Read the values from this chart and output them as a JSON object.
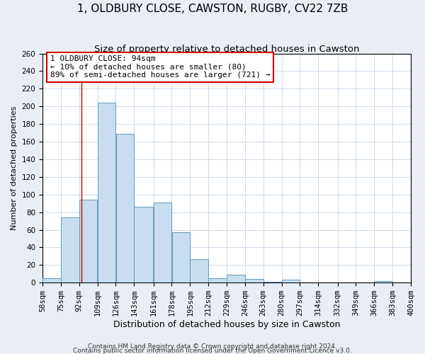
{
  "title": "1, OLDBURY CLOSE, CAWSTON, RUGBY, CV22 7ZB",
  "subtitle": "Size of property relative to detached houses in Cawston",
  "xlabel": "Distribution of detached houses by size in Cawston",
  "ylabel": "Number of detached properties",
  "bin_edges": [
    58,
    75,
    92,
    109,
    126,
    143,
    161,
    178,
    195,
    212,
    229,
    246,
    263,
    280,
    297,
    314,
    332,
    349,
    366,
    383,
    400
  ],
  "bin_labels": [
    "58sqm",
    "75sqm",
    "92sqm",
    "109sqm",
    "126sqm",
    "143sqm",
    "161sqm",
    "178sqm",
    "195sqm",
    "212sqm",
    "229sqm",
    "246sqm",
    "263sqm",
    "280sqm",
    "297sqm",
    "314sqm",
    "332sqm",
    "349sqm",
    "366sqm",
    "383sqm",
    "400sqm"
  ],
  "counts": [
    5,
    74,
    94,
    204,
    169,
    86,
    91,
    57,
    27,
    5,
    9,
    4,
    1,
    3,
    0,
    0,
    0,
    0,
    2,
    0
  ],
  "bar_color": "#c8ddef",
  "bar_edge_color": "#6699bb",
  "property_line_x": 94,
  "annotation_line1": "1 OLDBURY CLOSE: 94sqm",
  "annotation_line2": "← 10% of detached houses are smaller (80)",
  "annotation_line3": "89% of semi-detached houses are larger (721) →",
  "annotation_box_color": "#ffffff",
  "annotation_box_edge_color": "#cc0000",
  "footer_line1": "Contains HM Land Registry data © Crown copyright and database right 2024.",
  "footer_line2": "Contains public sector information licensed under the Open Government Licence v3.0.",
  "ylim": [
    0,
    260
  ],
  "yticks": [
    0,
    20,
    40,
    60,
    80,
    100,
    120,
    140,
    160,
    180,
    200,
    220,
    240,
    260
  ],
  "title_fontsize": 11,
  "subtitle_fontsize": 9.5,
  "xlabel_fontsize": 9,
  "ylabel_fontsize": 8,
  "tick_fontsize": 7.5,
  "annot_fontsize": 8,
  "footer_fontsize": 6.5,
  "background_color": "#e8eef4",
  "plot_background_color": "#ffffff",
  "grid_color": "#c5d5e5"
}
